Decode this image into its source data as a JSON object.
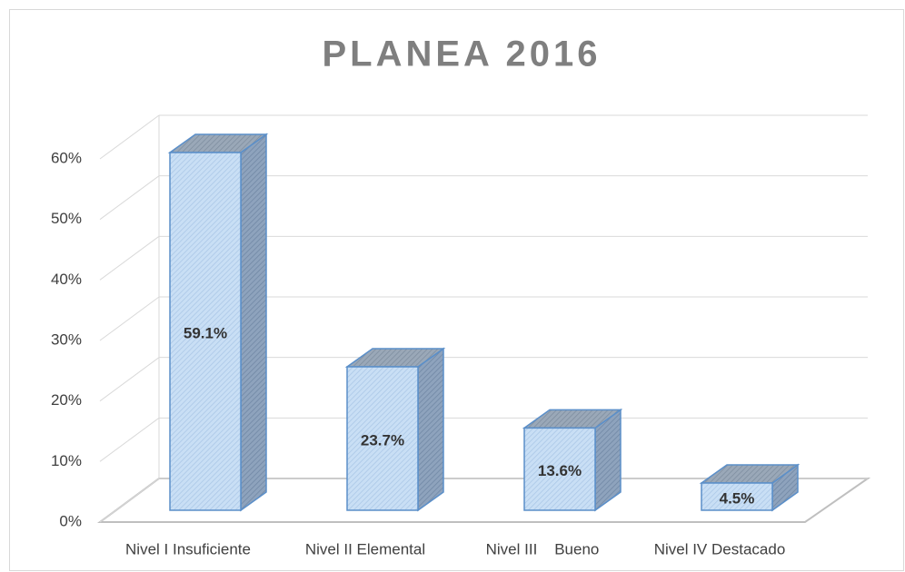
{
  "chart_data": {
    "type": "bar3d",
    "title": "PLANEA 2016",
    "categories": [
      "Nivel I Insuficiente",
      "Nivel II Elemental",
      "Nivel III    Bueno",
      "Nivel IV Destacado"
    ],
    "values": [
      59.1,
      23.7,
      13.6,
      4.5
    ],
    "value_labels": [
      "59.1%",
      "23.7%",
      "13.6%",
      "4.5%"
    ],
    "color": "#c9dff5",
    "ylim": [
      0,
      60
    ],
    "yticks": [
      {
        "value": 0,
        "label": "0%"
      },
      {
        "value": 10,
        "label": "10%"
      },
      {
        "value": 20,
        "label": "20%"
      },
      {
        "value": 30,
        "label": "30%"
      },
      {
        "value": 40,
        "label": "40%"
      },
      {
        "value": 50,
        "label": "50%"
      },
      {
        "value": 60,
        "label": "60%"
      }
    ],
    "grid": true
  }
}
